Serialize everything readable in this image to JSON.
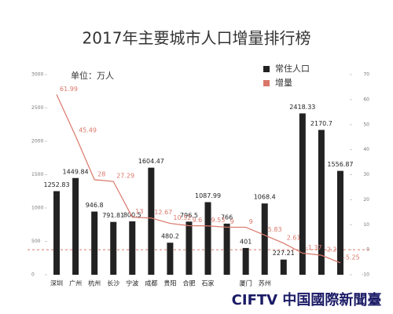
{
  "chart_data": {
    "type": "bar_line",
    "title": "2017年主要城市人口增量排行榜",
    "subtitle": "单位：万人",
    "watermark": "CIFTV 中国國際新聞臺",
    "categories": [
      "深圳",
      "广州",
      "杭州",
      "长沙",
      "宁波",
      "成都",
      "贵阳",
      "合肥",
      "石家",
      null,
      "厦门",
      "苏州",
      null,
      null,
      null,
      null
    ],
    "series": [
      {
        "name": "常住人口",
        "type": "bar",
        "color": "#222222",
        "values": [
          1252.83,
          1449.84,
          946.8,
          791.81,
          800.5,
          1604.47,
          480.2,
          796.5,
          1087.99,
          766,
          401,
          1068.4,
          227.21,
          2418.33,
          2170.7,
          1556.87
        ]
      },
      {
        "name": "增量",
        "type": "line",
        "axis": "y2",
        "color": "#d9776a",
        "values": [
          61.99,
          45.49,
          28,
          27.29,
          13,
          12.67,
          10.52,
          9.6,
          9.53,
          9,
          9,
          5.83,
          2.61,
          -1.37,
          -2.2,
          -5.25
        ]
      }
    ],
    "ylim": [
      0,
      3000
    ],
    "yticks": [
      0,
      500,
      1000,
      1500,
      2000,
      2500,
      3000
    ],
    "y2lim": [
      -10,
      70
    ],
    "y2ticks": [
      -10,
      0,
      10,
      20,
      30,
      40,
      50,
      60,
      70
    ],
    "y2_reference_line": 0,
    "legend": "top-right"
  }
}
